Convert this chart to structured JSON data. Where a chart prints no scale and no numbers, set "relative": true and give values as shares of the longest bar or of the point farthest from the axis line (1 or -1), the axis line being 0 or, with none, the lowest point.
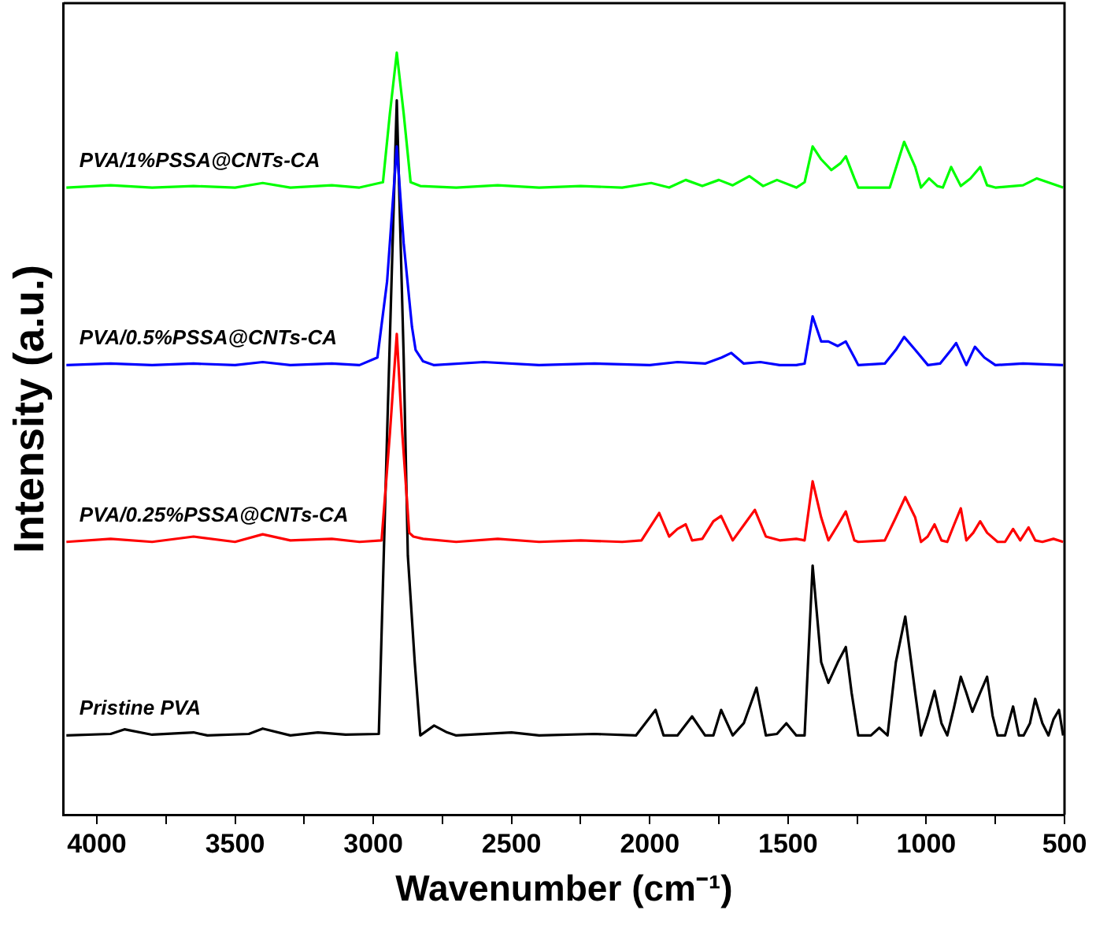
{
  "chart_data": {
    "type": "line",
    "relative": true,
    "xlabel": "Wavenumber (cm⁻¹)",
    "ylabel": "Intensity (a.u.)",
    "xlim": [
      4120,
      500
    ],
    "xticks": [
      4000,
      {
        "value": 3750,
        "label": null
      },
      3500,
      {
        "value": 3250,
        "label": null
      },
      3000,
      {
        "value": 2750,
        "label": null
      },
      2500,
      {
        "value": 2250,
        "label": null
      },
      2000,
      {
        "value": 1750,
        "label": null
      },
      1500,
      {
        "value": 1250,
        "label": null
      },
      1000,
      {
        "value": 750,
        "label": null
      },
      500
    ],
    "grid": false,
    "legend": false,
    "marker": "none",
    "line_style": "solid",
    "series": [
      {
        "name": "Pristine PVA",
        "color": "#000000",
        "x": [
          4110,
          3950,
          3900,
          3800,
          3650,
          3600,
          3450,
          3400,
          3300,
          3200,
          3100,
          2980,
          2950,
          2915,
          2890,
          2875,
          2850,
          2830,
          2780,
          2733,
          2700,
          2500,
          2400,
          2200,
          2050,
          1979,
          1950,
          1900,
          1847,
          1800,
          1770,
          1742,
          1700,
          1660,
          1614,
          1580,
          1540,
          1506,
          1470,
          1440,
          1411,
          1380,
          1354,
          1320,
          1291,
          1270,
          1246,
          1200,
          1170,
          1140,
          1110,
          1076,
          1040,
          1019,
          995,
          970,
          945,
          924,
          900,
          875,
          855,
          833,
          805,
          780,
          760,
          742,
          715,
          686,
          665,
          648,
          625,
          606,
          580,
          558,
          540,
          520,
          505
        ],
        "values": [
          0.104,
          0.106,
          0.112,
          0.105,
          0.108,
          0.104,
          0.106,
          0.113,
          0.104,
          0.108,
          0.105,
          0.106,
          0.5,
          0.9375,
          0.6,
          0.34,
          0.2,
          0.104,
          0.117,
          0.108,
          0.104,
          0.108,
          0.104,
          0.106,
          0.104,
          0.1375,
          0.104,
          0.104,
          0.129,
          0.104,
          0.104,
          0.1375,
          0.104,
          0.12,
          0.1667,
          0.104,
          0.106,
          0.12,
          0.104,
          0.104,
          0.327,
          0.2,
          0.173,
          0.2,
          0.22,
          0.16,
          0.104,
          0.104,
          0.114,
          0.104,
          0.2,
          0.26,
          0.16,
          0.104,
          0.13,
          0.1625,
          0.12,
          0.104,
          0.14,
          0.181,
          0.16,
          0.135,
          0.16,
          0.181,
          0.13,
          0.104,
          0.104,
          0.142,
          0.104,
          0.104,
          0.12,
          0.152,
          0.12,
          0.104,
          0.125,
          0.1375,
          0.104
        ]
      },
      {
        "name": "PVA/0.25%PSSA@CNTs-CA",
        "color": "#ff0000",
        "x": [
          4110,
          3950,
          3800,
          3650,
          3500,
          3400,
          3300,
          3150,
          3050,
          2970,
          2940,
          2915,
          2895,
          2870,
          2855,
          2820,
          2700,
          2550,
          2400,
          2250,
          2100,
          2030,
          1966,
          1930,
          1900,
          1870,
          1847,
          1810,
          1770,
          1742,
          1700,
          1660,
          1620,
          1580,
          1530,
          1470,
          1440,
          1411,
          1380,
          1354,
          1320,
          1291,
          1260,
          1246,
          1150,
          1110,
          1076,
          1040,
          1019,
          995,
          970,
          945,
          924,
          900,
          875,
          855,
          830,
          805,
          780,
          742,
          715,
          686,
          660,
          630,
          606,
          580,
          540,
          505
        ],
        "values": [
          0.358,
          0.362,
          0.358,
          0.365,
          0.358,
          0.368,
          0.36,
          0.362,
          0.358,
          0.36,
          0.5,
          0.631,
          0.5,
          0.37,
          0.365,
          0.362,
          0.358,
          0.362,
          0.358,
          0.36,
          0.358,
          0.36,
          0.396,
          0.365,
          0.375,
          0.381,
          0.36,
          0.362,
          0.385,
          0.392,
          0.36,
          0.38,
          0.4,
          0.365,
          0.36,
          0.362,
          0.36,
          0.4375,
          0.39,
          0.36,
          0.38,
          0.398,
          0.36,
          0.358,
          0.36,
          0.39,
          0.4167,
          0.39,
          0.358,
          0.365,
          0.381,
          0.36,
          0.358,
          0.38,
          0.402,
          0.36,
          0.37,
          0.385,
          0.37,
          0.358,
          0.358,
          0.375,
          0.36,
          0.377,
          0.36,
          0.358,
          0.362,
          0.358
        ]
      },
      {
        "name": "PVA/0.5%PSSA@CNTs-CA",
        "color": "#0000ff",
        "x": [
          4110,
          3950,
          3800,
          3650,
          3500,
          3400,
          3300,
          3150,
          3050,
          2985,
          2950,
          2915,
          2890,
          2860,
          2847,
          2820,
          2780,
          2600,
          2400,
          2200,
          2000,
          1900,
          1800,
          1740,
          1705,
          1660,
          1600,
          1530,
          1470,
          1440,
          1411,
          1380,
          1354,
          1320,
          1291,
          1260,
          1246,
          1150,
          1110,
          1080,
          1040,
          994,
          950,
          910,
          892,
          855,
          824,
          790,
          750,
          650,
          505
        ],
        "values": [
          0.59,
          0.592,
          0.59,
          0.592,
          0.59,
          0.594,
          0.59,
          0.592,
          0.59,
          0.6,
          0.7,
          0.877,
          0.75,
          0.64,
          0.61,
          0.595,
          0.59,
          0.594,
          0.59,
          0.592,
          0.59,
          0.594,
          0.592,
          0.6,
          0.606,
          0.592,
          0.594,
          0.59,
          0.59,
          0.592,
          0.654,
          0.621,
          0.621,
          0.615,
          0.621,
          0.6,
          0.59,
          0.592,
          0.61,
          0.627,
          0.61,
          0.59,
          0.592,
          0.61,
          0.619,
          0.59,
          0.614,
          0.6,
          0.59,
          0.592,
          0.59
        ]
      },
      {
        "name": "PVA/1%PSSA@CNTs-CA",
        "color": "#00ff00",
        "x": [
          4110,
          3950,
          3800,
          3650,
          3500,
          3400,
          3300,
          3150,
          3050,
          2965,
          2940,
          2915,
          2890,
          2865,
          2830,
          2700,
          2550,
          2400,
          2250,
          2100,
          1995,
          1930,
          1870,
          1810,
          1750,
          1700,
          1640,
          1590,
          1540,
          1470,
          1440,
          1411,
          1380,
          1343,
          1310,
          1291,
          1260,
          1246,
          1132,
          1100,
          1080,
          1040,
          1019,
          990,
          960,
          940,
          910,
          875,
          840,
          805,
          780,
          750,
          650,
          600,
          505
        ],
        "values": [
          0.823,
          0.826,
          0.823,
          0.825,
          0.823,
          0.829,
          0.823,
          0.826,
          0.823,
          0.83,
          0.92,
          1.0,
          0.92,
          0.83,
          0.825,
          0.823,
          0.826,
          0.823,
          0.825,
          0.823,
          0.829,
          0.823,
          0.833,
          0.825,
          0.833,
          0.826,
          0.838,
          0.825,
          0.833,
          0.823,
          0.83,
          0.877,
          0.86,
          0.846,
          0.855,
          0.864,
          0.835,
          0.823,
          0.823,
          0.86,
          0.883,
          0.85,
          0.823,
          0.835,
          0.825,
          0.823,
          0.85,
          0.825,
          0.835,
          0.85,
          0.826,
          0.823,
          0.826,
          0.835,
          0.823
        ]
      }
    ]
  }
}
